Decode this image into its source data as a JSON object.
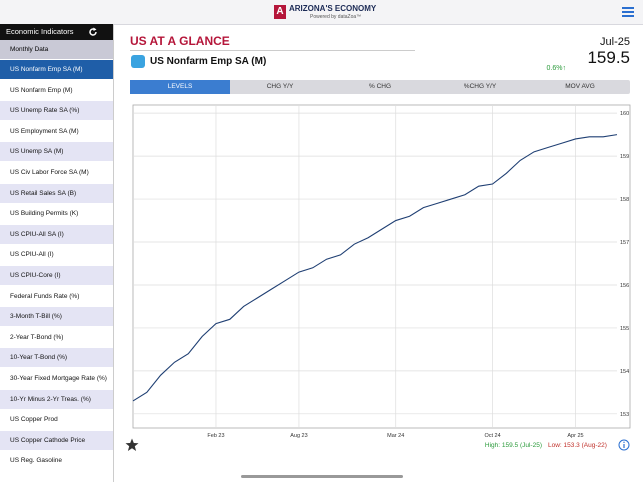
{
  "header": {
    "title": "ARIZONA'S ECONOMY",
    "subtitle": "Powered by dataZoa™"
  },
  "sidebar": {
    "title": "Economic Indicators",
    "section": "Monthly Data",
    "items": [
      "US Nonfarm Emp SA (M)",
      "US Nonfarm Emp (M)",
      "US Unemp Rate SA (%)",
      "US Employment SA (M)",
      "US Unemp SA (M)",
      "US Civ Labor Force SA (M)",
      "US Retail Sales SA (B)",
      "US Building Permits (K)",
      "US CPIU-All SA (I)",
      "US CPIU-All (I)",
      "US CPIU-Core (I)",
      "Federal Funds Rate (%)",
      "3-Month T-Bill (%)",
      "2-Year T-Bond (%)",
      "10-Year T-Bond (%)",
      "30-Year Fixed Mortgage Rate (%)",
      "10-Yr Minus 2-Yr Treas. (%)",
      "US Copper Prod",
      "US Copper Cathode Price",
      "US Reg. Gasoline"
    ]
  },
  "main": {
    "title": "US AT A GLANCE",
    "series_name": "US Nonfarm Emp SA (M)",
    "date": "Jul-25",
    "value": "159.5",
    "change": "0.6%↑",
    "tabs": [
      "LEVELS",
      "CHG Y/Y",
      "% CHG",
      "%CHG Y/Y",
      "MOV AVG"
    ],
    "high": "High: 159.5 (Jul-25)",
    "low": "Low: 153.3 (Aug-22)"
  },
  "chart_data": {
    "type": "line",
    "color": "#1f3f73",
    "grid": true,
    "categories": [
      null,
      null,
      null,
      null,
      null,
      null,
      "Feb 23",
      null,
      null,
      null,
      null,
      null,
      "Aug 23",
      null,
      null,
      null,
      null,
      null,
      null,
      "Mar 24",
      null,
      null,
      null,
      null,
      null,
      null,
      "Oct 24",
      null,
      null,
      null,
      null,
      null,
      "Apr 25",
      null,
      null,
      null
    ],
    "values": [
      153.3,
      153.5,
      153.9,
      154.2,
      154.4,
      154.8,
      155.1,
      155.2,
      155.5,
      155.7,
      155.9,
      156.1,
      156.3,
      156.4,
      156.6,
      156.7,
      156.95,
      157.1,
      157.3,
      157.5,
      157.6,
      157.8,
      157.9,
      158.0,
      158.1,
      158.3,
      158.35,
      158.6,
      158.9,
      159.1,
      159.2,
      159.3,
      159.4,
      159.45,
      159.45,
      159.5
    ],
    "ylim": [
      152.67,
      160.19
    ],
    "yticks": [
      153,
      154,
      155,
      156,
      157,
      158,
      159,
      160
    ]
  }
}
